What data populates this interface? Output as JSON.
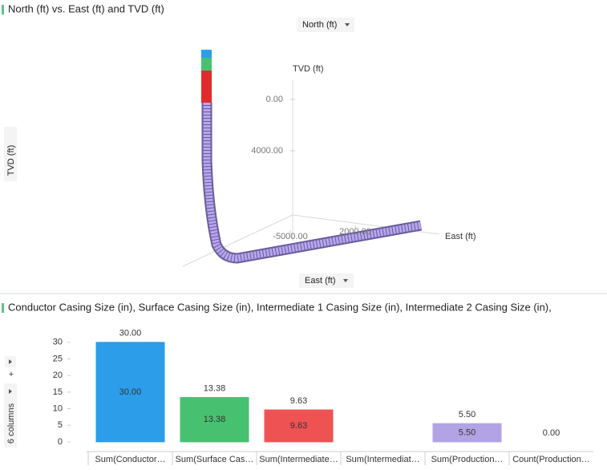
{
  "chart_data": [
    {
      "type": "scatter3d",
      "title": "North (ft) vs. East (ft) and TVD (ft)",
      "y_selector": "North (ft)",
      "x_selector": "East (ft)",
      "z_selector": "TVD (ft)",
      "x_label": "East (ft)",
      "z_label": "TVD (ft)",
      "xticks": [
        {
          "value": -5000,
          "label": "-5000.00"
        },
        {
          "value": 2000,
          "label": "2000.00"
        }
      ],
      "zticks": [
        {
          "value": 0,
          "label": "0.00"
        },
        {
          "value": 4000,
          "label": "4000.00"
        }
      ]
    },
    {
      "type": "bar",
      "title": "Conductor Casing Size (in), Surface Casing Size (in), Intermediate 1 Casing Size (in), Intermediate 2 Casing Size (in),",
      "categories": [
        "Sum(Conductor…",
        "Sum(Surface Cas…",
        "Sum(Intermediate…",
        "Sum(Intermediat…",
        "Sum(Production…",
        "Count(Production…"
      ],
      "values": [
        30,
        13.38,
        9.63,
        null,
        5.5,
        0
      ],
      "value_labels": [
        "30.00",
        "13.38",
        "9.63",
        null,
        "5.50",
        "0.00"
      ],
      "colors": [
        "#2b9de9",
        "#47c16f",
        "#ef5253",
        "#999999",
        "#b2a3e4",
        "#e7ad45"
      ],
      "ylim": [
        -2.2,
        37.7
      ],
      "yticks": [
        0,
        5,
        10,
        15,
        20,
        25,
        30
      ]
    }
  ],
  "ui": {
    "columns_label": "6 columns",
    "add_button": "+"
  }
}
